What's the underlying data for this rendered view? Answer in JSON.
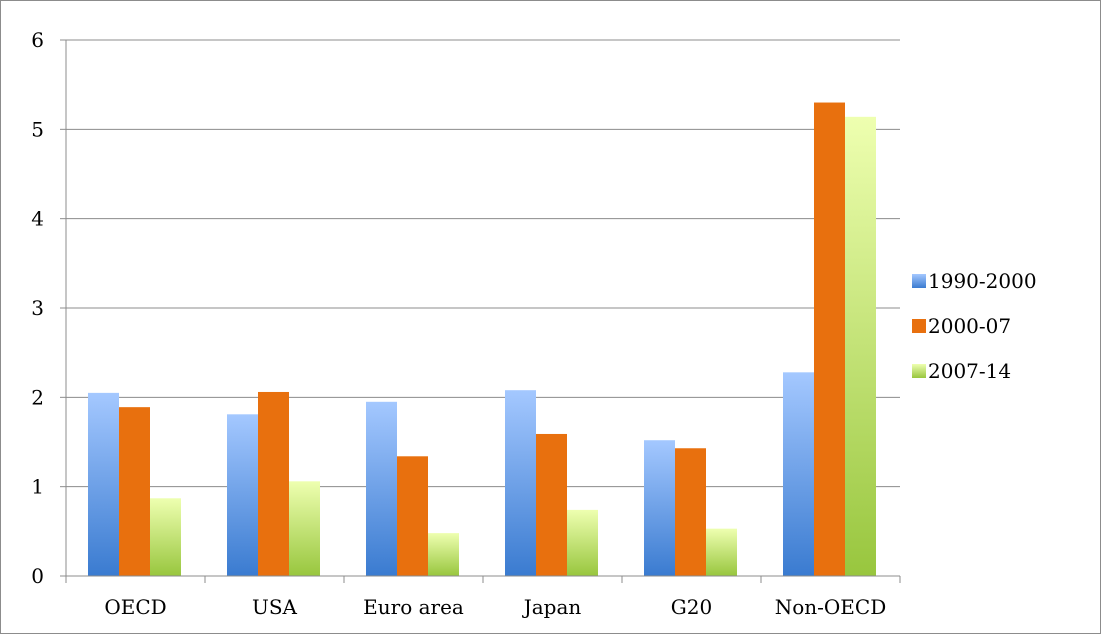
{
  "chart_data": {
    "type": "bar",
    "title": "",
    "xlabel": "",
    "ylabel": "",
    "categories": [
      "OECD",
      "USA",
      "Euro area",
      "Japan",
      "G20",
      "Non-OECD"
    ],
    "series": [
      {
        "name": "1990-2000",
        "values": [
          2.05,
          1.81,
          1.95,
          2.08,
          1.52,
          2.28
        ],
        "color_top": "#a4c8ff",
        "color_bottom": "#3a7bd0"
      },
      {
        "name": "2000-07",
        "values": [
          1.89,
          2.06,
          1.34,
          1.59,
          1.43,
          5.3
        ],
        "color_top": "#e8700e",
        "color_bottom": "#e8700e"
      },
      {
        "name": "2007-14",
        "values": [
          0.87,
          1.06,
          0.48,
          0.74,
          0.53,
          5.14
        ],
        "color_top": "#eeffb0",
        "color_bottom": "#98c63e"
      }
    ],
    "ylim": [
      0,
      6
    ],
    "yticks": [
      "0",
      "1",
      "2",
      "3",
      "4",
      "5",
      "6"
    ],
    "grid": true,
    "legend_position": "right"
  }
}
